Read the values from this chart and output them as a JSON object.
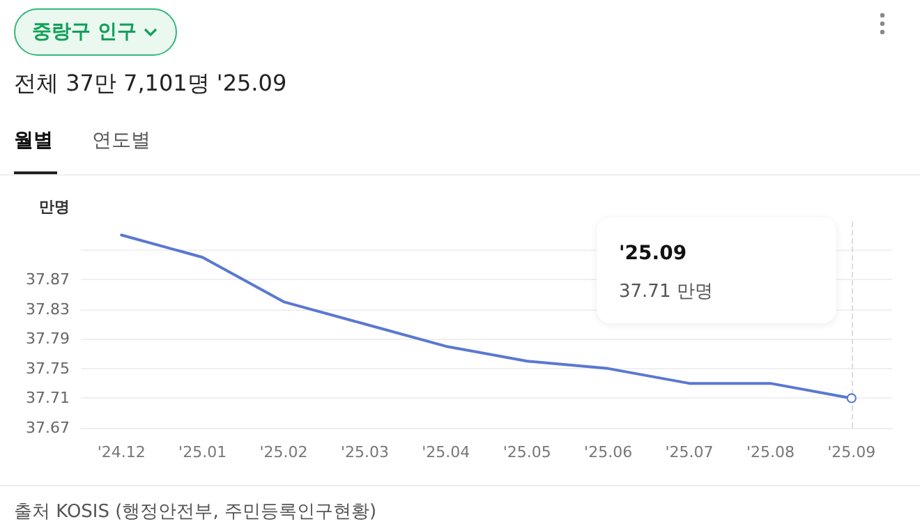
{
  "chart_data": {
    "type": "line",
    "title": "중랑구 인구",
    "subtitle": "전체 37만 7,101명 '25.09",
    "ylabel": "만명",
    "categories": [
      "'24.12",
      "'25.01",
      "'25.02",
      "'25.03",
      "'25.04",
      "'25.05",
      "'25.06",
      "'25.07",
      "'25.08",
      "'25.09"
    ],
    "series": [
      {
        "color": "#5a78d1",
        "values": [
          37.93,
          37.9,
          37.84,
          37.81,
          37.78,
          37.76,
          37.75,
          37.73,
          37.73,
          37.71
        ]
      }
    ],
    "ylim": [
      37.67,
      37.95
    ],
    "yticks": [
      37.67,
      37.71,
      37.75,
      37.79,
      37.83,
      37.87,
      {
        "value": 37.91,
        "label": null
      }
    ],
    "grid": "y",
    "marker": "none",
    "line_style": "solid",
    "ref_lines": [
      {
        "axis": "x",
        "value": "'25.09",
        "color": "#dddddd",
        "line_style": "dashed"
      }
    ],
    "annotations": [
      "'25.09\n37.71 만명",
      "월별",
      "연도별",
      "출처 KOSIS (행정안전부, 주민등록인구현황)"
    ]
  }
}
